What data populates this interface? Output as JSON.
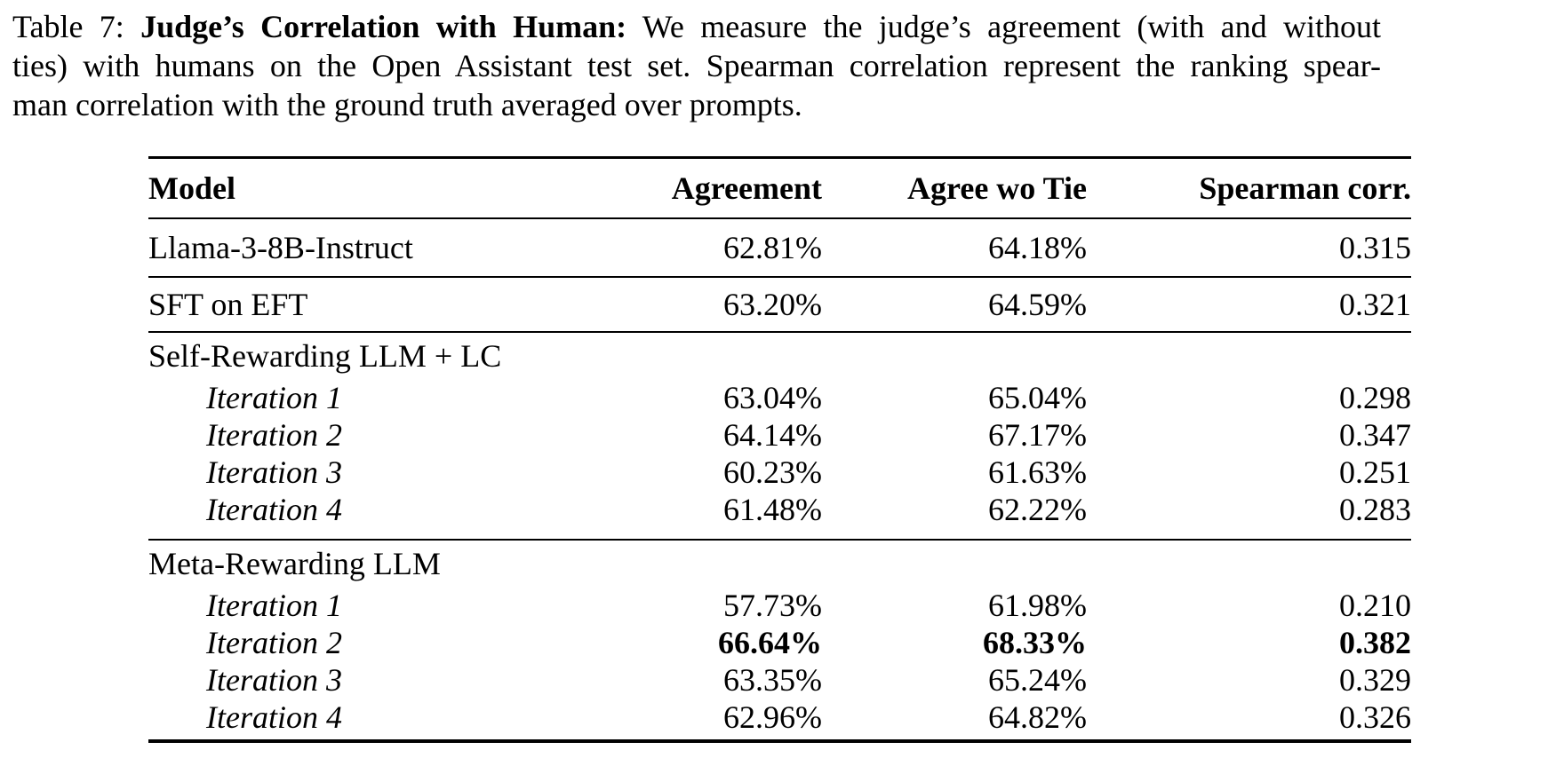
{
  "caption": {
    "line1_prefix": "Table 7: ",
    "line1_bold": "Judge’s Correlation with Human:",
    "line1_rest": " We measure the judge’s agreement (with and without",
    "line2": "ties) with humans on the Open Assistant test set. Spearman correlation represent the ranking spear-",
    "line3": "man correlation with the ground truth averaged over prompts."
  },
  "table": {
    "header": {
      "model": "Model",
      "agreement": "Agreement",
      "agree_wo_tie": "Agree wo Tie",
      "spearman": "Spearman corr."
    },
    "rows": [
      {
        "model": "Llama-3-8B-Instruct",
        "agreement": "62.81%",
        "agree_wo_tie": "64.18%",
        "spearman": "0.315"
      },
      {
        "model": "SFT on EFT",
        "agreement": "63.20%",
        "agree_wo_tie": "64.59%",
        "spearman": "0.321"
      },
      {
        "model": "Self-Rewarding LLM + LC"
      },
      {
        "model": "Iteration 1",
        "agreement": "63.04%",
        "agree_wo_tie": "65.04%",
        "spearman": "0.298"
      },
      {
        "model": "Iteration 2",
        "agreement": "64.14%",
        "agree_wo_tie": "67.17%",
        "spearman": "0.347"
      },
      {
        "model": "Iteration 3",
        "agreement": "60.23%",
        "agree_wo_tie": "61.63%",
        "spearman": "0.251"
      },
      {
        "model": "Iteration 4",
        "agreement": "61.48%",
        "agree_wo_tie": "62.22%",
        "spearman": "0.283"
      },
      {
        "model": "Meta-Rewarding LLM"
      },
      {
        "model": "Iteration 1",
        "agreement": "57.73%",
        "agree_wo_tie": "61.98%",
        "spearman": "0.210"
      },
      {
        "model": "Iteration 2",
        "agreement": "66.64%",
        "agree_wo_tie": "68.33%",
        "spearman": "0.382"
      },
      {
        "model": "Iteration 3",
        "agreement": "63.35%",
        "agree_wo_tie": "65.24%",
        "spearman": "0.329"
      },
      {
        "model": "Iteration 4",
        "agreement": "62.96%",
        "agree_wo_tie": "64.82%",
        "spearman": "0.326"
      }
    ]
  }
}
